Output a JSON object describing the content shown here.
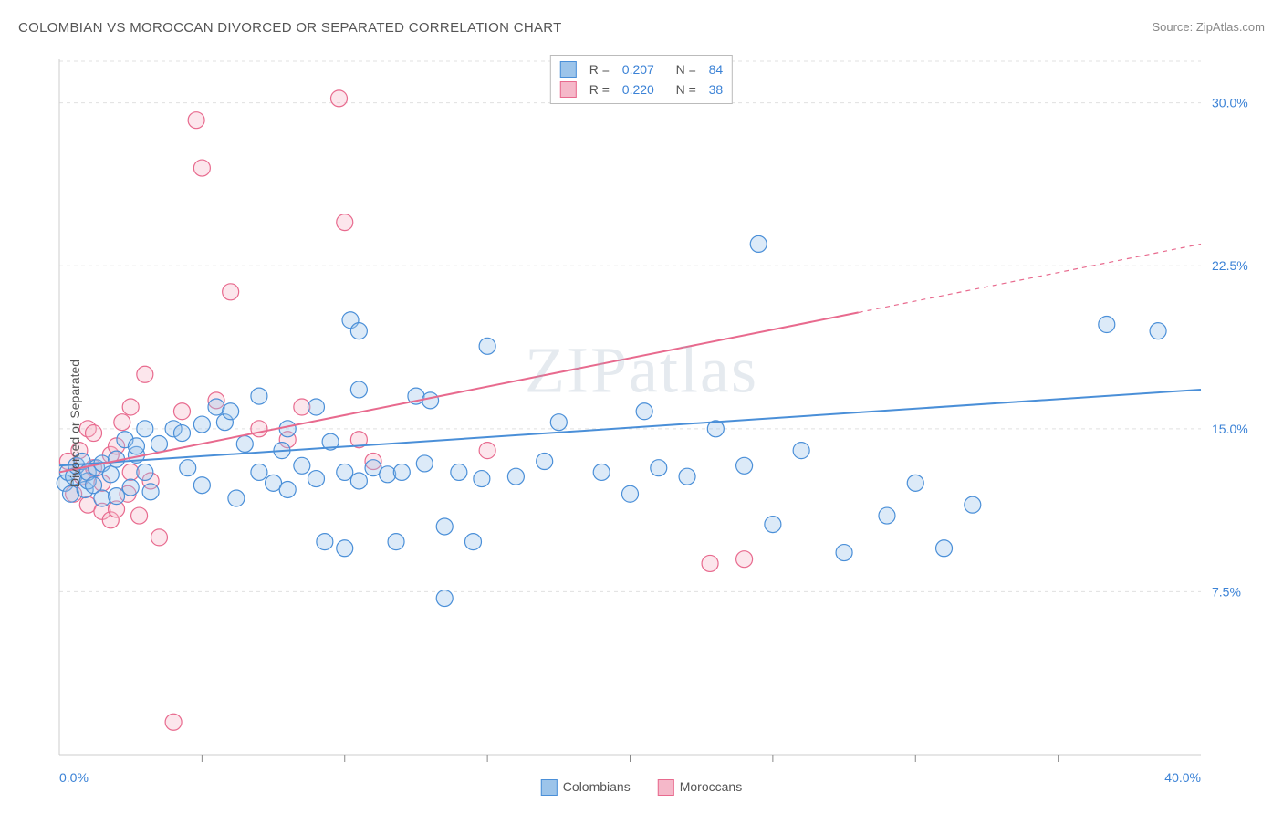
{
  "title": "COLOMBIAN VS MOROCCAN DIVORCED OR SEPARATED CORRELATION CHART",
  "source_prefix": "Source: ",
  "source_name": "ZipAtlas.com",
  "watermark": "ZIPatlas",
  "ylabel": "Divorced or Separated",
  "chart": {
    "type": "scatter",
    "xlim": [
      0,
      40
    ],
    "ylim": [
      0,
      32
    ],
    "xticks_major": [
      0,
      40
    ],
    "xtick_labels": [
      "0.0%",
      "40.0%"
    ],
    "xticks_minor": [
      5,
      10,
      15,
      20,
      25,
      30,
      35
    ],
    "yticks": [
      7.5,
      15.0,
      22.5,
      30.0
    ],
    "ytick_labels": [
      "7.5%",
      "15.0%",
      "22.5%",
      "30.0%"
    ],
    "grid_color": "#e0e0e0",
    "axis_color": "#cccccc",
    "tick_color": "#888888",
    "tick_label_color": "#3b82d6",
    "background_color": "#ffffff",
    "marker_radius": 9,
    "marker_stroke_width": 1.2,
    "marker_fill_opacity": 0.35,
    "trend_line_width": 2,
    "series": [
      {
        "name": "Colombians",
        "color_stroke": "#4a8fd8",
        "color_fill": "#9cc4ea",
        "r_value": "0.207",
        "n_value": "84",
        "trend": {
          "x1": 0,
          "y1": 13.3,
          "x2": 40,
          "y2": 16.8,
          "solid_until_x": 40
        },
        "points": [
          [
            0.2,
            12.5
          ],
          [
            0.3,
            13.0
          ],
          [
            0.4,
            12.0
          ],
          [
            0.5,
            12.8
          ],
          [
            0.6,
            13.3
          ],
          [
            0.8,
            13.5
          ],
          [
            0.9,
            12.2
          ],
          [
            1.0,
            12.6
          ],
          [
            1.0,
            13.0
          ],
          [
            1.2,
            12.4
          ],
          [
            1.3,
            13.2
          ],
          [
            1.5,
            11.8
          ],
          [
            1.5,
            13.4
          ],
          [
            1.8,
            12.9
          ],
          [
            2.0,
            13.6
          ],
          [
            2.0,
            11.9
          ],
          [
            2.3,
            14.5
          ],
          [
            2.5,
            12.3
          ],
          [
            2.7,
            13.8
          ],
          [
            2.7,
            14.2
          ],
          [
            3.0,
            13.0
          ],
          [
            3.0,
            15.0
          ],
          [
            3.2,
            12.1
          ],
          [
            3.5,
            14.3
          ],
          [
            4.0,
            15.0
          ],
          [
            4.3,
            14.8
          ],
          [
            4.5,
            13.2
          ],
          [
            5.0,
            12.4
          ],
          [
            5.0,
            15.2
          ],
          [
            5.5,
            16.0
          ],
          [
            5.8,
            15.3
          ],
          [
            6.0,
            15.8
          ],
          [
            6.2,
            11.8
          ],
          [
            6.5,
            14.3
          ],
          [
            7.0,
            13.0
          ],
          [
            7.0,
            16.5
          ],
          [
            7.5,
            12.5
          ],
          [
            7.8,
            14.0
          ],
          [
            8.0,
            12.2
          ],
          [
            8.0,
            15.0
          ],
          [
            8.5,
            13.3
          ],
          [
            9.0,
            12.7
          ],
          [
            9.0,
            16.0
          ],
          [
            9.3,
            9.8
          ],
          [
            9.5,
            14.4
          ],
          [
            10.0,
            9.5
          ],
          [
            10.0,
            13.0
          ],
          [
            10.2,
            20.0
          ],
          [
            10.5,
            19.5
          ],
          [
            10.5,
            12.6
          ],
          [
            10.5,
            16.8
          ],
          [
            11.0,
            13.2
          ],
          [
            11.5,
            12.9
          ],
          [
            11.8,
            9.8
          ],
          [
            12.0,
            13.0
          ],
          [
            12.5,
            16.5
          ],
          [
            12.8,
            13.4
          ],
          [
            13.0,
            16.3
          ],
          [
            13.5,
            10.5
          ],
          [
            13.5,
            7.2
          ],
          [
            14.0,
            13.0
          ],
          [
            14.5,
            9.8
          ],
          [
            14.8,
            12.7
          ],
          [
            15.0,
            18.8
          ],
          [
            16.0,
            12.8
          ],
          [
            17.0,
            13.5
          ],
          [
            17.5,
            15.3
          ],
          [
            19.0,
            13.0
          ],
          [
            20.0,
            12.0
          ],
          [
            20.5,
            15.8
          ],
          [
            21.0,
            13.2
          ],
          [
            22.0,
            12.8
          ],
          [
            23.0,
            15.0
          ],
          [
            24.0,
            13.3
          ],
          [
            24.5,
            23.5
          ],
          [
            25.0,
            10.6
          ],
          [
            26.0,
            14.0
          ],
          [
            27.5,
            9.3
          ],
          [
            29.0,
            11.0
          ],
          [
            30.0,
            12.5
          ],
          [
            31.0,
            9.5
          ],
          [
            32.0,
            11.5
          ],
          [
            36.7,
            19.8
          ],
          [
            38.5,
            19.5
          ]
        ]
      },
      {
        "name": "Moroccans",
        "color_stroke": "#e86a8e",
        "color_fill": "#f5b8c9",
        "r_value": "0.220",
        "n_value": "38",
        "trend": {
          "x1": 0,
          "y1": 13.0,
          "x2": 40,
          "y2": 23.5,
          "solid_until_x": 28
        },
        "points": [
          [
            0.3,
            13.5
          ],
          [
            0.5,
            12.0
          ],
          [
            0.7,
            14.0
          ],
          [
            0.8,
            12.8
          ],
          [
            1.0,
            15.0
          ],
          [
            1.0,
            11.5
          ],
          [
            1.2,
            13.2
          ],
          [
            1.2,
            14.8
          ],
          [
            1.5,
            11.2
          ],
          [
            1.5,
            12.5
          ],
          [
            1.8,
            13.8
          ],
          [
            1.8,
            10.8
          ],
          [
            2.0,
            14.2
          ],
          [
            2.0,
            11.3
          ],
          [
            2.2,
            15.3
          ],
          [
            2.4,
            12.0
          ],
          [
            2.5,
            13.0
          ],
          [
            2.5,
            16.0
          ],
          [
            2.8,
            11.0
          ],
          [
            3.0,
            17.5
          ],
          [
            3.2,
            12.6
          ],
          [
            3.5,
            10.0
          ],
          [
            4.0,
            1.5
          ],
          [
            4.3,
            15.8
          ],
          [
            4.8,
            29.2
          ],
          [
            5.0,
            27.0
          ],
          [
            5.5,
            16.3
          ],
          [
            6.0,
            21.3
          ],
          [
            7.0,
            15.0
          ],
          [
            8.0,
            14.5
          ],
          [
            8.5,
            16.0
          ],
          [
            9.8,
            30.2
          ],
          [
            10.0,
            24.5
          ],
          [
            10.5,
            14.5
          ],
          [
            11.0,
            13.5
          ],
          [
            15.0,
            14.0
          ],
          [
            22.8,
            8.8
          ],
          [
            24.0,
            9.0
          ]
        ]
      }
    ]
  },
  "legend_top": {
    "r_label": "R =",
    "n_label": "N ="
  },
  "legend_bottom": {
    "items": [
      "Colombians",
      "Moroccans"
    ]
  }
}
